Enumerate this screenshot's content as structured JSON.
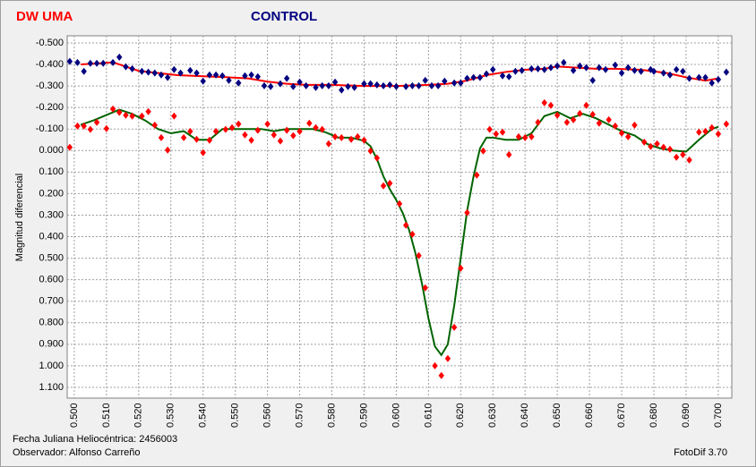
{
  "chart_data": {
    "type": "scatter",
    "y_axis_label": "Magnitud diferencial",
    "annotations": [
      "Fecha Juliana Heliocéntrica: 2456003",
      "Observador: Alfonso Carreño",
      "FotoDif 3.70"
    ],
    "xlim": [
      0.4978,
      0.7042
    ],
    "ylim": [
      -0.533,
      1.15
    ],
    "y_inverted": true,
    "grid": true,
    "xticks": [
      {
        "value": 0.5,
        "label": "0.500"
      },
      {
        "value": 0.51,
        "label": "0.510"
      },
      {
        "value": 0.52,
        "label": "0.520"
      },
      {
        "value": 0.53,
        "label": "0.530"
      },
      {
        "value": 0.54,
        "label": "0.540"
      },
      {
        "value": 0.55,
        "label": "0.550"
      },
      {
        "value": 0.56,
        "label": "0.560"
      },
      {
        "value": 0.57,
        "label": "0.570"
      },
      {
        "value": 0.58,
        "label": "0.580"
      },
      {
        "value": 0.59,
        "label": "0.590"
      },
      {
        "value": 0.6,
        "label": "0.600"
      },
      {
        "value": 0.61,
        "label": "0.610"
      },
      {
        "value": 0.62,
        "label": "0.620"
      },
      {
        "value": 0.63,
        "label": "0.630"
      },
      {
        "value": 0.64,
        "label": "0.640"
      },
      {
        "value": 0.65,
        "label": "0.650"
      },
      {
        "value": 0.66,
        "label": "0.660"
      },
      {
        "value": 0.67,
        "label": "0.670"
      },
      {
        "value": 0.68,
        "label": "0.680"
      },
      {
        "value": 0.69,
        "label": "0.690"
      },
      {
        "value": 0.7,
        "label": "0.700"
      }
    ],
    "yticks": [
      {
        "value": -0.5,
        "label": "-0.500"
      },
      {
        "value": -0.4,
        "label": "-0.400"
      },
      {
        "value": -0.3,
        "label": "-0.300"
      },
      {
        "value": -0.2,
        "label": "-0.200"
      },
      {
        "value": -0.1,
        "label": "-0.100"
      },
      {
        "value": 0,
        "label": "0.000"
      },
      {
        "value": 0.1,
        "label": "0.100"
      },
      {
        "value": 0.2,
        "label": "0.200"
      },
      {
        "value": 0.3,
        "label": "0.300"
      },
      {
        "value": 0.4,
        "label": "0.400"
      },
      {
        "value": 0.5,
        "label": "0.500"
      },
      {
        "value": 0.6,
        "label": "0.600"
      },
      {
        "value": 0.7,
        "label": "0.700"
      },
      {
        "value": 0.8,
        "label": "0.800"
      },
      {
        "value": 0.9,
        "label": "0.900"
      },
      {
        "value": 1.0,
        "label": "1.000"
      },
      {
        "value": 1.1,
        "label": "1.100"
      }
    ],
    "series": [
      {
        "name": "DW UMA",
        "color": "#ff0000",
        "marker": "diamond",
        "x": [
          0.4986,
          0.501,
          0.503,
          0.505,
          0.507,
          0.51,
          0.512,
          0.514,
          0.516,
          0.518,
          0.521,
          0.523,
          0.525,
          0.527,
          0.529,
          0.531,
          0.534,
          0.536,
          0.538,
          0.54,
          0.542,
          0.544,
          0.547,
          0.549,
          0.551,
          0.553,
          0.555,
          0.557,
          0.56,
          0.562,
          0.564,
          0.566,
          0.568,
          0.57,
          0.573,
          0.575,
          0.577,
          0.579,
          0.581,
          0.583,
          0.586,
          0.588,
          0.59,
          0.592,
          0.594,
          0.596,
          0.598,
          0.601,
          0.603,
          0.605,
          0.607,
          0.609,
          0.612,
          0.614,
          0.616,
          0.618,
          0.62,
          0.622,
          0.625,
          0.627,
          0.629,
          0.631,
          0.633,
          0.635,
          0.638,
          0.64,
          0.642,
          0.644,
          0.646,
          0.648,
          0.65,
          0.653,
          0.655,
          0.657,
          0.659,
          0.661,
          0.663,
          0.666,
          0.668,
          0.67,
          0.672,
          0.674,
          0.677,
          0.679,
          0.681,
          0.683,
          0.685,
          0.687,
          0.689,
          0.691,
          0.694,
          0.696,
          0.698,
          0.7,
          0.7025
        ],
        "values": [
          -0.015,
          -0.114,
          -0.114,
          -0.098,
          -0.131,
          -0.102,
          -0.193,
          -0.177,
          -0.164,
          -0.16,
          -0.16,
          -0.181,
          -0.118,
          -0.06,
          -0.002,
          -0.16,
          -0.06,
          -0.089,
          -0.052,
          0.01,
          -0.048,
          -0.089,
          -0.098,
          -0.106,
          -0.123,
          -0.073,
          -0.048,
          -0.094,
          -0.123,
          -0.073,
          -0.044,
          -0.094,
          -0.069,
          -0.089,
          -0.127,
          -0.106,
          -0.098,
          -0.031,
          -0.064,
          -0.06,
          -0.052,
          -0.064,
          -0.048,
          0.002,
          0.035,
          0.164,
          0.152,
          0.247,
          0.347,
          0.389,
          0.488,
          0.638,
          1.0,
          1.045,
          0.966,
          0.821,
          0.547,
          0.289,
          0.114,
          0.002,
          -0.098,
          -0.077,
          -0.085,
          0.019,
          -0.064,
          -0.06,
          -0.064,
          -0.131,
          -0.222,
          -0.21,
          -0.164,
          -0.131,
          -0.143,
          -0.172,
          -0.21,
          -0.168,
          -0.127,
          -0.143,
          -0.114,
          -0.081,
          -0.064,
          -0.118,
          -0.039,
          -0.019,
          -0.031,
          -0.015,
          -0.006,
          0.031,
          0.019,
          0.044,
          -0.085,
          -0.089,
          -0.106,
          -0.077,
          -0.123
        ],
        "fit_color": "#006400",
        "fit_x": [
          0.502,
          0.506,
          0.51,
          0.514,
          0.518,
          0.522,
          0.526,
          0.53,
          0.534,
          0.538,
          0.542,
          0.546,
          0.55,
          0.554,
          0.558,
          0.562,
          0.566,
          0.57,
          0.574,
          0.578,
          0.582,
          0.586,
          0.59,
          0.592,
          0.594,
          0.596,
          0.598,
          0.6,
          0.602,
          0.604,
          0.606,
          0.608,
          0.61,
          0.612,
          0.614,
          0.616,
          0.618,
          0.62,
          0.622,
          0.624,
          0.626,
          0.628,
          0.63,
          0.634,
          0.638,
          0.642,
          0.646,
          0.65,
          0.654,
          0.658,
          0.662,
          0.666,
          0.67,
          0.674,
          0.678,
          0.682,
          0.686,
          0.69,
          0.694,
          0.698,
          0.7
        ],
        "fit_values": [
          -0.12,
          -0.14,
          -0.165,
          -0.19,
          -0.17,
          -0.14,
          -0.1,
          -0.08,
          -0.09,
          -0.05,
          -0.05,
          -0.1,
          -0.1,
          -0.1,
          -0.1,
          -0.09,
          -0.1,
          -0.1,
          -0.1,
          -0.085,
          -0.06,
          -0.06,
          -0.045,
          -0.02,
          0.04,
          0.12,
          0.18,
          0.23,
          0.29,
          0.37,
          0.48,
          0.62,
          0.78,
          0.91,
          0.95,
          0.9,
          0.72,
          0.5,
          0.28,
          0.12,
          -0.01,
          -0.06,
          -0.06,
          -0.05,
          -0.05,
          -0.08,
          -0.16,
          -0.18,
          -0.15,
          -0.17,
          -0.15,
          -0.12,
          -0.09,
          -0.07,
          -0.03,
          -0.01,
          0.0,
          0.005,
          -0.05,
          -0.1,
          -0.11
        ]
      },
      {
        "name": "CONTROL",
        "color": "#000080",
        "marker": "diamond",
        "x": [
          0.4986,
          0.501,
          0.503,
          0.505,
          0.507,
          0.509,
          0.512,
          0.514,
          0.516,
          0.518,
          0.521,
          0.523,
          0.525,
          0.527,
          0.529,
          0.531,
          0.533,
          0.536,
          0.538,
          0.54,
          0.542,
          0.544,
          0.546,
          0.548,
          0.551,
          0.553,
          0.555,
          0.557,
          0.559,
          0.561,
          0.564,
          0.566,
          0.568,
          0.57,
          0.572,
          0.575,
          0.577,
          0.579,
          0.581,
          0.583,
          0.585,
          0.587,
          0.59,
          0.592,
          0.594,
          0.596,
          0.598,
          0.6,
          0.603,
          0.605,
          0.607,
          0.609,
          0.611,
          0.613,
          0.615,
          0.618,
          0.62,
          0.622,
          0.624,
          0.626,
          0.628,
          0.63,
          0.633,
          0.635,
          0.637,
          0.639,
          0.642,
          0.644,
          0.646,
          0.648,
          0.65,
          0.652,
          0.655,
          0.657,
          0.659,
          0.661,
          0.663,
          0.665,
          0.668,
          0.67,
          0.672,
          0.674,
          0.676,
          0.679,
          0.68,
          0.683,
          0.685,
          0.687,
          0.689,
          0.691,
          0.694,
          0.696,
          0.698,
          0.7,
          0.7025
        ],
        "values": [
          -0.414,
          -0.409,
          -0.368,
          -0.405,
          -0.405,
          -0.405,
          -0.409,
          -0.434,
          -0.389,
          -0.38,
          -0.368,
          -0.364,
          -0.36,
          -0.351,
          -0.339,
          -0.376,
          -0.36,
          -0.372,
          -0.36,
          -0.322,
          -0.351,
          -0.351,
          -0.347,
          -0.326,
          -0.314,
          -0.347,
          -0.351,
          -0.343,
          -0.301,
          -0.297,
          -0.31,
          -0.335,
          -0.297,
          -0.318,
          -0.301,
          -0.293,
          -0.301,
          -0.301,
          -0.318,
          -0.281,
          -0.297,
          -0.293,
          -0.31,
          -0.31,
          -0.305,
          -0.301,
          -0.305,
          -0.297,
          -0.297,
          -0.301,
          -0.301,
          -0.326,
          -0.301,
          -0.301,
          -0.322,
          -0.314,
          -0.314,
          -0.335,
          -0.339,
          -0.339,
          -0.356,
          -0.376,
          -0.347,
          -0.343,
          -0.368,
          -0.372,
          -0.38,
          -0.38,
          -0.376,
          -0.385,
          -0.393,
          -0.409,
          -0.372,
          -0.393,
          -0.385,
          -0.326,
          -0.385,
          -0.376,
          -0.397,
          -0.36,
          -0.385,
          -0.372,
          -0.368,
          -0.376,
          -0.368,
          -0.36,
          -0.351,
          -0.376,
          -0.368,
          -0.335,
          -0.339,
          -0.339,
          -0.314,
          -0.33,
          -0.364
        ],
        "fit_color": "#ff0000",
        "fit_x": [
          0.502,
          0.508,
          0.512,
          0.516,
          0.52,
          0.526,
          0.532,
          0.54,
          0.548,
          0.554,
          0.56,
          0.566,
          0.572,
          0.58,
          0.59,
          0.6,
          0.61,
          0.616,
          0.622,
          0.628,
          0.634,
          0.64,
          0.646,
          0.65,
          0.656,
          0.662,
          0.668,
          0.676,
          0.684,
          0.69,
          0.696,
          0.7
        ],
        "fit_values": [
          -0.4,
          -0.405,
          -0.41,
          -0.39,
          -0.37,
          -0.36,
          -0.35,
          -0.345,
          -0.34,
          -0.335,
          -0.32,
          -0.31,
          -0.305,
          -0.305,
          -0.3,
          -0.3,
          -0.305,
          -0.31,
          -0.325,
          -0.35,
          -0.365,
          -0.375,
          -0.38,
          -0.39,
          -0.385,
          -0.38,
          -0.38,
          -0.375,
          -0.36,
          -0.34,
          -0.325,
          -0.335
        ]
      }
    ]
  }
}
